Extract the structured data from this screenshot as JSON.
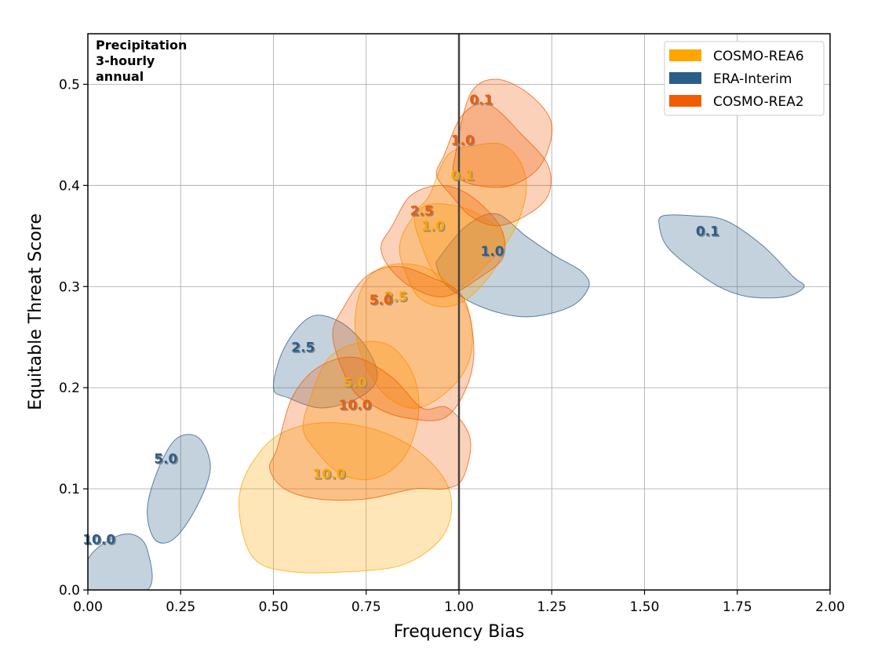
{
  "chart_data": {
    "type": "scatter",
    "note_lines": [
      "Precipitation",
      "3-hourly",
      "annual"
    ],
    "xlabel": "Frequency Bias",
    "ylabel": "Equitable Threat Score",
    "xlim": [
      0.0,
      2.0
    ],
    "ylim": [
      0.0,
      0.55
    ],
    "xticks": [
      0.0,
      0.25,
      0.5,
      0.75,
      1.0,
      1.25,
      1.5,
      1.75,
      2.0
    ],
    "xtick_labels": [
      "0.00",
      "0.25",
      "0.50",
      "0.75",
      "1.00",
      "1.25",
      "1.50",
      "1.75",
      "2.00"
    ],
    "yticks": [
      0.0,
      0.1,
      0.2,
      0.3,
      0.4,
      0.5
    ],
    "ytick_labels": [
      "0.0",
      "0.1",
      "0.2",
      "0.3",
      "0.4",
      "0.5"
    ],
    "grid": true,
    "reference_line_x": 1.0,
    "legend_position": "top-right",
    "series": [
      {
        "name": "COSMO-REA6",
        "color": "#FFA500",
        "points": [
          {
            "label": "0.1",
            "x": 1.01,
            "y": 0.41
          },
          {
            "label": "1.0",
            "x": 0.93,
            "y": 0.36
          },
          {
            "label": "2.5",
            "x": 0.83,
            "y": 0.29
          },
          {
            "label": "5.0",
            "x": 0.72,
            "y": 0.205
          },
          {
            "label": "10.0",
            "x": 0.65,
            "y": 0.115
          }
        ],
        "regions": [
          [
            [
              0.92,
              0.39
            ],
            [
              0.97,
              0.43
            ],
            [
              1.05,
              0.44
            ],
            [
              1.12,
              0.44
            ],
            [
              1.17,
              0.42
            ],
            [
              1.18,
              0.39
            ],
            [
              1.14,
              0.35
            ],
            [
              1.07,
              0.32
            ],
            [
              1.0,
              0.3
            ],
            [
              0.94,
              0.31
            ],
            [
              0.9,
              0.34
            ],
            [
              0.88,
              0.37
            ]
          ],
          [
            [
              0.86,
              0.36
            ],
            [
              0.91,
              0.38
            ],
            [
              0.99,
              0.38
            ],
            [
              1.06,
              0.37
            ],
            [
              1.12,
              0.35
            ],
            [
              1.1,
              0.32
            ],
            [
              1.03,
              0.29
            ],
            [
              0.96,
              0.28
            ],
            [
              0.89,
              0.29
            ],
            [
              0.85,
              0.32
            ],
            [
              0.84,
              0.34
            ]
          ],
          [
            [
              0.74,
              0.3
            ],
            [
              0.8,
              0.32
            ],
            [
              0.9,
              0.32
            ],
            [
              0.98,
              0.3
            ],
            [
              1.03,
              0.27
            ],
            [
              1.03,
              0.23
            ],
            [
              0.98,
              0.2
            ],
            [
              0.89,
              0.18
            ],
            [
              0.81,
              0.19
            ],
            [
              0.75,
              0.22
            ],
            [
              0.72,
              0.26
            ]
          ],
          [
            [
              0.6,
              0.19
            ],
            [
              0.65,
              0.23
            ],
            [
              0.74,
              0.245
            ],
            [
              0.82,
              0.24
            ],
            [
              0.88,
              0.21
            ],
            [
              0.89,
              0.17
            ],
            [
              0.85,
              0.13
            ],
            [
              0.77,
              0.11
            ],
            [
              0.68,
              0.115
            ],
            [
              0.61,
              0.14
            ],
            [
              0.58,
              0.16
            ]
          ],
          [
            [
              0.42,
              0.11
            ],
            [
              0.5,
              0.15
            ],
            [
              0.62,
              0.165
            ],
            [
              0.76,
              0.16
            ],
            [
              0.88,
              0.14
            ],
            [
              0.96,
              0.11
            ],
            [
              0.98,
              0.08
            ],
            [
              0.95,
              0.05
            ],
            [
              0.85,
              0.025
            ],
            [
              0.7,
              0.018
            ],
            [
              0.55,
              0.018
            ],
            [
              0.45,
              0.03
            ],
            [
              0.41,
              0.07
            ]
          ]
        ]
      },
      {
        "name": "ERA-Interim",
        "color": "#2B5D8A",
        "points": [
          {
            "label": "0.1",
            "x": 1.67,
            "y": 0.355
          },
          {
            "label": "1.0",
            "x": 1.09,
            "y": 0.335
          },
          {
            "label": "2.5",
            "x": 0.58,
            "y": 0.24
          },
          {
            "label": "5.0",
            "x": 0.21,
            "y": 0.13
          },
          {
            "label": "10.0",
            "x": 0.03,
            "y": 0.05
          }
        ],
        "regions": [
          [
            [
              1.55,
              0.37
            ],
            [
              1.63,
              0.37
            ],
            [
              1.72,
              0.365
            ],
            [
              1.82,
              0.34
            ],
            [
              1.9,
              0.31
            ],
            [
              1.93,
              0.3
            ],
            [
              1.88,
              0.29
            ],
            [
              1.78,
              0.29
            ],
            [
              1.7,
              0.3
            ],
            [
              1.62,
              0.32
            ],
            [
              1.56,
              0.34
            ],
            [
              1.54,
              0.36
            ]
          ],
          [
            [
              0.95,
              0.33
            ],
            [
              1.02,
              0.36
            ],
            [
              1.1,
              0.372
            ],
            [
              1.18,
              0.35
            ],
            [
              1.26,
              0.33
            ],
            [
              1.33,
              0.315
            ],
            [
              1.35,
              0.3
            ],
            [
              1.3,
              0.28
            ],
            [
              1.18,
              0.27
            ],
            [
              1.06,
              0.28
            ],
            [
              0.97,
              0.3
            ],
            [
              0.94,
              0.32
            ]
          ],
          [
            [
              0.5,
              0.2
            ],
            [
              0.53,
              0.24
            ],
            [
              0.6,
              0.27
            ],
            [
              0.68,
              0.265
            ],
            [
              0.75,
              0.24
            ],
            [
              0.78,
              0.21
            ],
            [
              0.73,
              0.19
            ],
            [
              0.63,
              0.18
            ],
            [
              0.54,
              0.19
            ]
          ],
          [
            [
              0.16,
              0.08
            ],
            [
              0.19,
              0.12
            ],
            [
              0.24,
              0.15
            ],
            [
              0.3,
              0.15
            ],
            [
              0.33,
              0.12
            ],
            [
              0.29,
              0.08
            ],
            [
              0.23,
              0.05
            ],
            [
              0.18,
              0.05
            ]
          ],
          [
            [
              0.0,
              0.03
            ],
            [
              0.06,
              0.05
            ],
            [
              0.12,
              0.055
            ],
            [
              0.16,
              0.04
            ],
            [
              0.16,
              0.0
            ],
            [
              0.0,
              0.0
            ]
          ]
        ]
      },
      {
        "name": "COSMO-REA2",
        "color": "#F25C05",
        "points": [
          {
            "label": "0.1",
            "x": 1.06,
            "y": 0.485
          },
          {
            "label": "1.0",
            "x": 1.01,
            "y": 0.445
          },
          {
            "label": "2.5",
            "x": 0.9,
            "y": 0.375
          },
          {
            "label": "5.0",
            "x": 0.79,
            "y": 0.287
          },
          {
            "label": "10.0",
            "x": 0.72,
            "y": 0.183
          }
        ],
        "regions": [
          [
            [
              0.99,
              0.43
            ],
            [
              1.03,
              0.49
            ],
            [
              1.1,
              0.505
            ],
            [
              1.19,
              0.49
            ],
            [
              1.25,
              0.46
            ],
            [
              1.22,
              0.42
            ],
            [
              1.14,
              0.4
            ],
            [
              1.05,
              0.4
            ],
            [
              0.99,
              0.41
            ]
          ],
          [
            [
              0.96,
              0.43
            ],
            [
              1.01,
              0.47
            ],
            [
              1.08,
              0.48
            ],
            [
              1.17,
              0.45
            ],
            [
              1.24,
              0.42
            ],
            [
              1.24,
              0.39
            ],
            [
              1.18,
              0.37
            ],
            [
              1.1,
              0.36
            ],
            [
              1.03,
              0.37
            ],
            [
              0.98,
              0.39
            ],
            [
              0.94,
              0.41
            ]
          ],
          [
            [
              0.82,
              0.36
            ],
            [
              0.87,
              0.39
            ],
            [
              0.95,
              0.4
            ],
            [
              1.03,
              0.39
            ],
            [
              1.11,
              0.36
            ],
            [
              1.12,
              0.33
            ],
            [
              1.06,
              0.31
            ],
            [
              0.96,
              0.29
            ],
            [
              0.87,
              0.3
            ],
            [
              0.81,
              0.32
            ],
            [
              0.79,
              0.34
            ]
          ],
          [
            [
              0.69,
              0.28
            ],
            [
              0.75,
              0.31
            ],
            [
              0.83,
              0.32
            ],
            [
              0.92,
              0.31
            ],
            [
              1.01,
              0.29
            ],
            [
              1.04,
              0.24
            ],
            [
              1.02,
              0.2
            ],
            [
              0.96,
              0.17
            ],
            [
              0.86,
              0.17
            ],
            [
              0.78,
              0.18
            ],
            [
              0.71,
              0.2
            ],
            [
              0.66,
              0.25
            ]
          ],
          [
            [
              0.51,
              0.14
            ],
            [
              0.55,
              0.19
            ],
            [
              0.62,
              0.22
            ],
            [
              0.72,
              0.23
            ],
            [
              0.82,
              0.21
            ],
            [
              0.9,
              0.18
            ],
            [
              0.97,
              0.18
            ],
            [
              1.03,
              0.15
            ],
            [
              1.01,
              0.11
            ],
            [
              0.96,
              0.1
            ],
            [
              0.88,
              0.1
            ],
            [
              0.75,
              0.09
            ],
            [
              0.62,
              0.09
            ],
            [
              0.53,
              0.1
            ],
            [
              0.49,
              0.12
            ]
          ]
        ]
      }
    ]
  }
}
